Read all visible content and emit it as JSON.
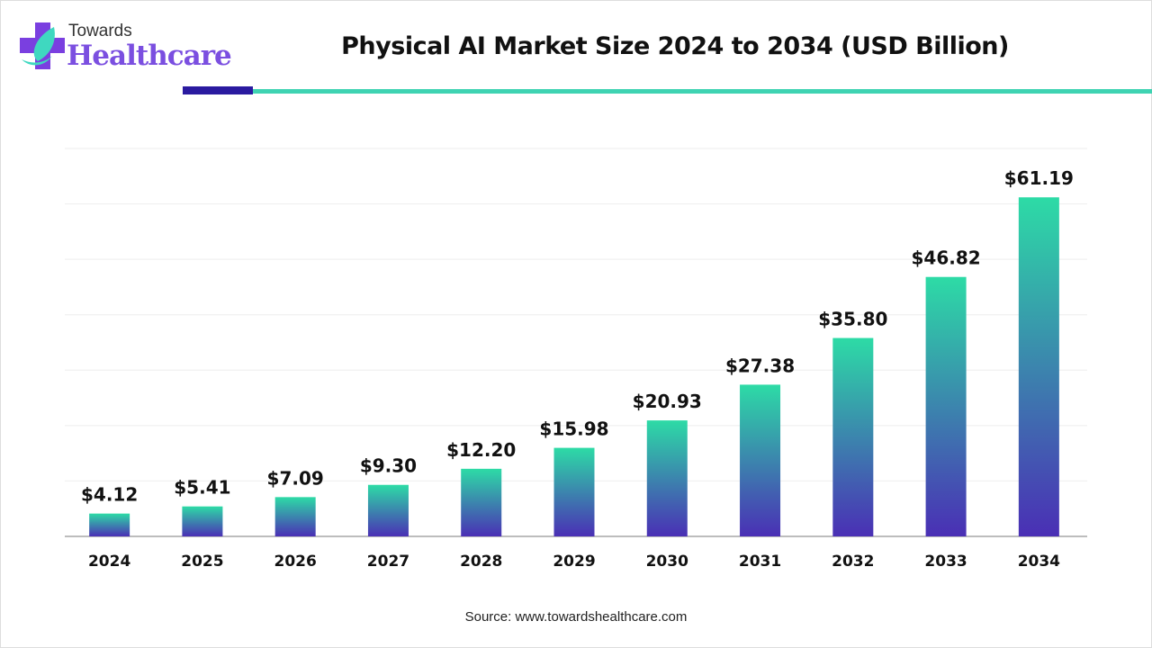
{
  "brand": {
    "line1": "Towards",
    "line2": "Healthcare"
  },
  "colors": {
    "bar_top": "#2ddba6",
    "bar_bottom": "#4a2fb5",
    "accent_dark": "#2a1aa0",
    "accent_teal": "#3fd3b2"
  },
  "source": "Source: www.towardshealthcare.com",
  "chart_data": {
    "type": "bar",
    "title": "Physical AI Market Size 2024 to 2034 (USD Billion)",
    "xlabel": "",
    "ylabel": "",
    "categories": [
      "2024",
      "2025",
      "2026",
      "2027",
      "2028",
      "2029",
      "2030",
      "2031",
      "2032",
      "2033",
      "2034"
    ],
    "values": [
      4.12,
      5.41,
      7.09,
      9.3,
      12.2,
      15.98,
      20.93,
      27.38,
      35.8,
      46.82,
      61.19
    ],
    "labels": [
      "$4.12",
      "$5.41",
      "$7.09",
      "$9.30",
      "$12.20",
      "$15.98",
      "$20.93",
      "$27.38",
      "$35.80",
      "$46.82",
      "$61.19"
    ],
    "ylim": [
      0,
      70
    ],
    "grid": true,
    "legend": "none"
  }
}
